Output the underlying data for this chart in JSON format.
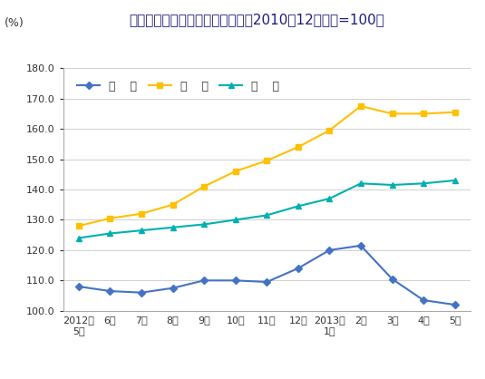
{
  "title": "猪肉、牛肉、羊肉价格变动情况（2010年12月价格=100）",
  "ylabel": "(%)",
  "x_labels": [
    "2012年\n5月",
    "6月",
    "7月",
    "8月",
    "9月",
    "10月",
    "11月",
    "12月",
    "2013年\n1月",
    "2月",
    "3月",
    "4月",
    "5月"
  ],
  "pork": [
    108.0,
    106.5,
    106.0,
    107.5,
    110.0,
    110.0,
    109.5,
    114.0,
    120.0,
    121.5,
    110.5,
    103.5,
    102.0
  ],
  "beef": [
    128.0,
    130.5,
    132.0,
    135.0,
    141.0,
    146.0,
    149.5,
    154.0,
    159.5,
    167.5,
    165.0,
    165.0,
    165.5
  ],
  "lamb": [
    124.0,
    125.5,
    126.5,
    127.5,
    128.5,
    130.0,
    131.5,
    134.5,
    137.0,
    142.0,
    141.5,
    142.0,
    143.0
  ],
  "pork_color": "#4472C4",
  "beef_color": "#FFC000",
  "lamb_color": "#00B0B0",
  "pork_label": "猪    肉",
  "beef_label": "牛    肉",
  "lamb_label": "羊    肉",
  "ylim": [
    100.0,
    180.0
  ],
  "yticks": [
    100.0,
    110.0,
    120.0,
    130.0,
    140.0,
    150.0,
    160.0,
    170.0,
    180.0
  ],
  "bg_color": "#FFFFFF",
  "title_fontsize": 11,
  "tick_fontsize": 8,
  "legend_fontsize": 9
}
